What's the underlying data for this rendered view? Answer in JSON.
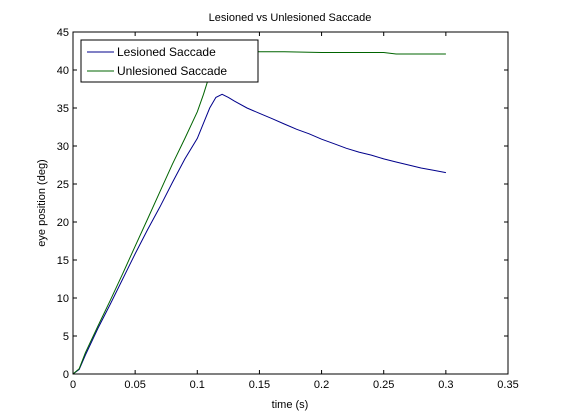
{
  "chart_data": {
    "type": "line",
    "title": "Lesioned vs Unlesioned Saccade",
    "xlabel": "time (s)",
    "ylabel": "eye position (deg)",
    "xlim": [
      0,
      0.35
    ],
    "ylim": [
      0,
      45
    ],
    "xticks": [
      0,
      0.05,
      0.1,
      0.15,
      0.2,
      0.25,
      0.3,
      0.35
    ],
    "xtick_labels": [
      "0",
      "0.05",
      "0.1",
      "0.15",
      "0.2",
      "0.25",
      "0.3",
      "0.35"
    ],
    "yticks": [
      0,
      5,
      10,
      15,
      20,
      25,
      30,
      35,
      40,
      45
    ],
    "ytick_labels": [
      "0",
      "5",
      "10",
      "15",
      "20",
      "25",
      "30",
      "35",
      "40",
      "45"
    ],
    "grid": false,
    "legend_position": "top-left",
    "series": [
      {
        "name": "Lesioned Saccade",
        "color": "#00008B",
        "x": [
          0,
          0.005,
          0.01,
          0.02,
          0.03,
          0.04,
          0.05,
          0.06,
          0.07,
          0.08,
          0.09,
          0.1,
          0.105,
          0.11,
          0.115,
          0.12,
          0.125,
          0.13,
          0.14,
          0.15,
          0.16,
          0.17,
          0.18,
          0.19,
          0.2,
          0.21,
          0.22,
          0.23,
          0.24,
          0.25,
          0.26,
          0.27,
          0.28,
          0.29,
          0.3
        ],
        "y": [
          0,
          0.6,
          2.5,
          6.0,
          9.2,
          12.5,
          15.8,
          19.0,
          22.0,
          25.2,
          28.3,
          31.0,
          33.0,
          35.0,
          36.4,
          36.8,
          36.4,
          35.9,
          35.0,
          34.3,
          33.6,
          32.9,
          32.2,
          31.6,
          30.9,
          30.3,
          29.7,
          29.2,
          28.8,
          28.3,
          27.9,
          27.5,
          27.1,
          26.8,
          26.5
        ]
      },
      {
        "name": "Unlesioned Saccade",
        "color": "#006400",
        "x": [
          0,
          0.005,
          0.01,
          0.02,
          0.03,
          0.04,
          0.05,
          0.06,
          0.07,
          0.08,
          0.09,
          0.1,
          0.105,
          0.11,
          0.115,
          0.12,
          0.13,
          0.15,
          0.17,
          0.2,
          0.22,
          0.25,
          0.26,
          0.3
        ],
        "y": [
          0,
          0.7,
          2.8,
          6.3,
          9.7,
          13.2,
          16.8,
          20.4,
          24.0,
          27.6,
          31.0,
          34.5,
          36.8,
          39.4,
          41.4,
          42.3,
          42.4,
          42.4,
          42.4,
          42.3,
          42.3,
          42.3,
          42.1,
          42.1
        ]
      }
    ]
  }
}
